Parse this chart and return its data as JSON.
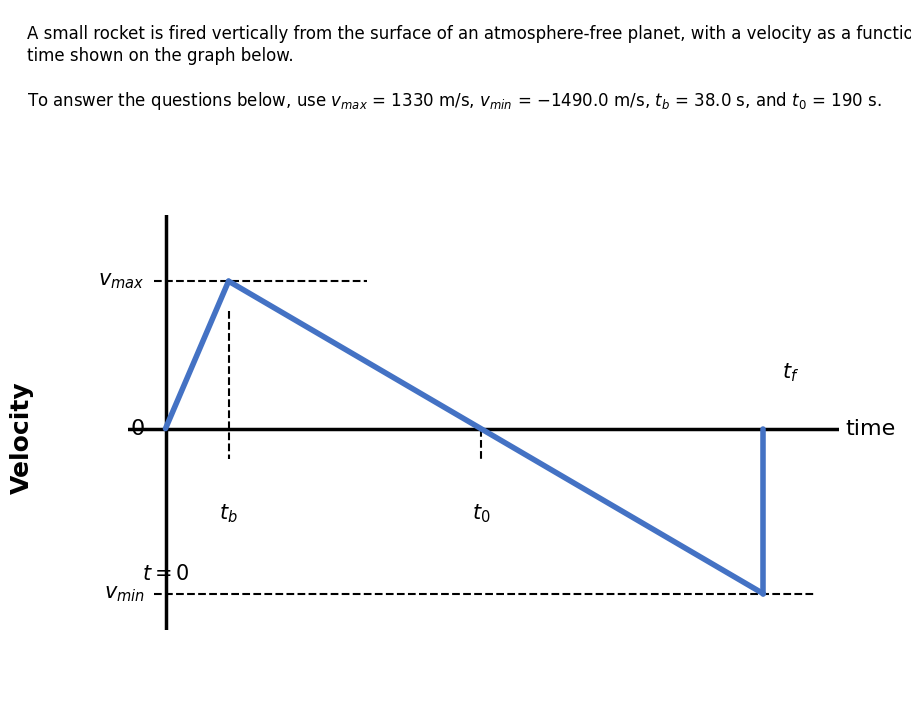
{
  "title_line1": "A small rocket is fired vertically from the surface of an atmosphere-free planet, with a velocity as a function of",
  "title_line2": "time shown on the graph below.",
  "param_text": "To answer the questions below, use $v_{max}$ = 1330 m/s, $v_{min}$ = −1490.0 m/s, $t_b$ = 38.0 s, and $t_0$ = 190 s.",
  "vmax": 1330,
  "vmin": -1490,
  "tb": 38.0,
  "t0": 190.0,
  "line_color": "#4472C4",
  "line_width": 4.0,
  "axis_color": "black",
  "dash_color": "black",
  "dash_lw": 1.5,
  "background": "white",
  "ylabel": "Velocity",
  "xlabel": "time",
  "title_fontsize": 12,
  "label_fontsize": 15,
  "tick_label_fontsize": 16,
  "ylabel_fontsize": 18,
  "xlabel_fontsize": 16
}
